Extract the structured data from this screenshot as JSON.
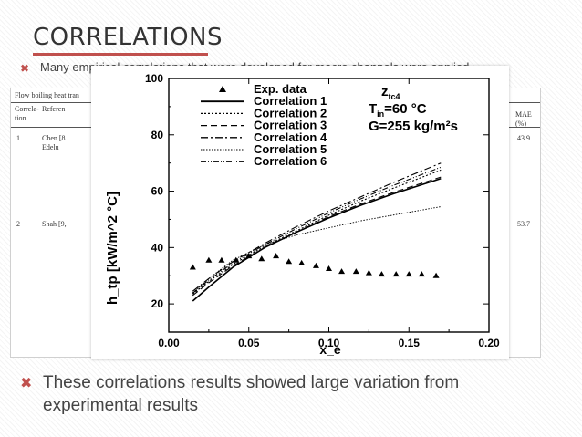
{
  "slide": {
    "title": "CORRELATIONS",
    "bullets": [
      {
        "text": "Many empirical correlations that were developed for macro channels were applied"
      },
      {
        "text": "These correlations results showed  large variation from experimental results"
      }
    ],
    "bullet_icon": "x-mark-icon",
    "accent_color": "#c0504d"
  },
  "background_table": {
    "caption": "Flow boiling heat tran",
    "headers": [
      "Correla-\ntion",
      "Referen",
      "MAE (%)"
    ],
    "rows": [
      {
        "num": "1",
        "ref": "Chen [8\nEdelu",
        "mae": "43.9"
      },
      {
        "num": "2",
        "ref": "Shah [9,",
        "mae": "53.7"
      }
    ]
  },
  "chart_data": {
    "type": "line",
    "title": "",
    "xlabel": "x_e",
    "ylabel": "h_tp [kW/m^2 °C]",
    "xlim": [
      0.0,
      0.2
    ],
    "ylim": [
      10,
      100
    ],
    "xticks": [
      "0.00",
      "0.05",
      "0.10",
      "0.15",
      "0.20"
    ],
    "yticks": [
      "20",
      "40",
      "60",
      "80",
      "100"
    ],
    "xtick_values": [
      0.0,
      0.05,
      0.1,
      0.15,
      0.2
    ],
    "ytick_values": [
      20,
      40,
      60,
      80,
      100
    ],
    "conditions": {
      "line1": "z",
      "line1_sub": "tc4",
      "line2_main": "T",
      "line2_sub": "in",
      "line2_value": "=60 °C",
      "line3_main": "G",
      "line3_value": "=255 kg/m²s"
    },
    "legend_position": "top-left",
    "grid": false,
    "experimental": {
      "name": "Exp. data",
      "marker": "triangle",
      "x": [
        0.015,
        0.025,
        0.033,
        0.042,
        0.05,
        0.058,
        0.067,
        0.075,
        0.083,
        0.092,
        0.1,
        0.108,
        0.117,
        0.125,
        0.133,
        0.142,
        0.15,
        0.158,
        0.167
      ],
      "y": [
        33,
        35.5,
        35.5,
        35.5,
        37,
        36,
        37,
        35,
        34.5,
        33.5,
        32.5,
        31.5,
        31.5,
        31,
        30.5,
        30.5,
        30.5,
        30.5,
        30
      ]
    },
    "series": [
      {
        "name": "Correlation 1",
        "dash": "",
        "width": 1.6,
        "x": [
          0.015,
          0.025,
          0.04,
          0.06,
          0.08,
          0.1,
          0.12,
          0.14,
          0.17
        ],
        "y": [
          21,
          26,
          33,
          40,
          45.5,
          50.5,
          55,
          59,
          64.5
        ]
      },
      {
        "name": "Correlation 2",
        "dash": "2,2",
        "width": 1.1,
        "x": [
          0.015,
          0.025,
          0.04,
          0.06,
          0.08,
          0.1,
          0.12,
          0.14,
          0.17
        ],
        "y": [
          23.5,
          28,
          34,
          40.5,
          46,
          51.5,
          56.5,
          61,
          67.5
        ]
      },
      {
        "name": "Correlation 3",
        "dash": "7,4",
        "width": 1.1,
        "x": [
          0.015,
          0.025,
          0.04,
          0.06,
          0.08,
          0.1,
          0.12,
          0.14,
          0.17
        ],
        "y": [
          23,
          27.5,
          33.5,
          40,
          45.5,
          51,
          55.5,
          59.5,
          65
        ]
      },
      {
        "name": "Correlation 4",
        "dash": "8,3,2,3",
        "width": 1.1,
        "x": [
          0.015,
          0.025,
          0.04,
          0.06,
          0.08,
          0.1,
          0.12,
          0.14,
          0.17
        ],
        "y": [
          24.5,
          29,
          35,
          41.5,
          47.5,
          53,
          58,
          63,
          70
        ]
      },
      {
        "name": "Correlation 5",
        "dash": "1.5,1.5",
        "width": 0.9,
        "x": [
          0.015,
          0.025,
          0.04,
          0.06,
          0.08,
          0.1,
          0.12,
          0.14,
          0.17
        ],
        "y": [
          24,
          29,
          35.5,
          41,
          44.5,
          47,
          49.5,
          51.5,
          54.5
        ]
      },
      {
        "name": "Correlation 6",
        "dash": "6,2,1,2,1,2",
        "width": 1.1,
        "x": [
          0.015,
          0.025,
          0.04,
          0.06,
          0.08,
          0.1,
          0.12,
          0.14,
          0.17
        ],
        "y": [
          23.8,
          28.5,
          34.5,
          41,
          46.8,
          52.3,
          57.3,
          62,
          68.5
        ]
      }
    ]
  }
}
